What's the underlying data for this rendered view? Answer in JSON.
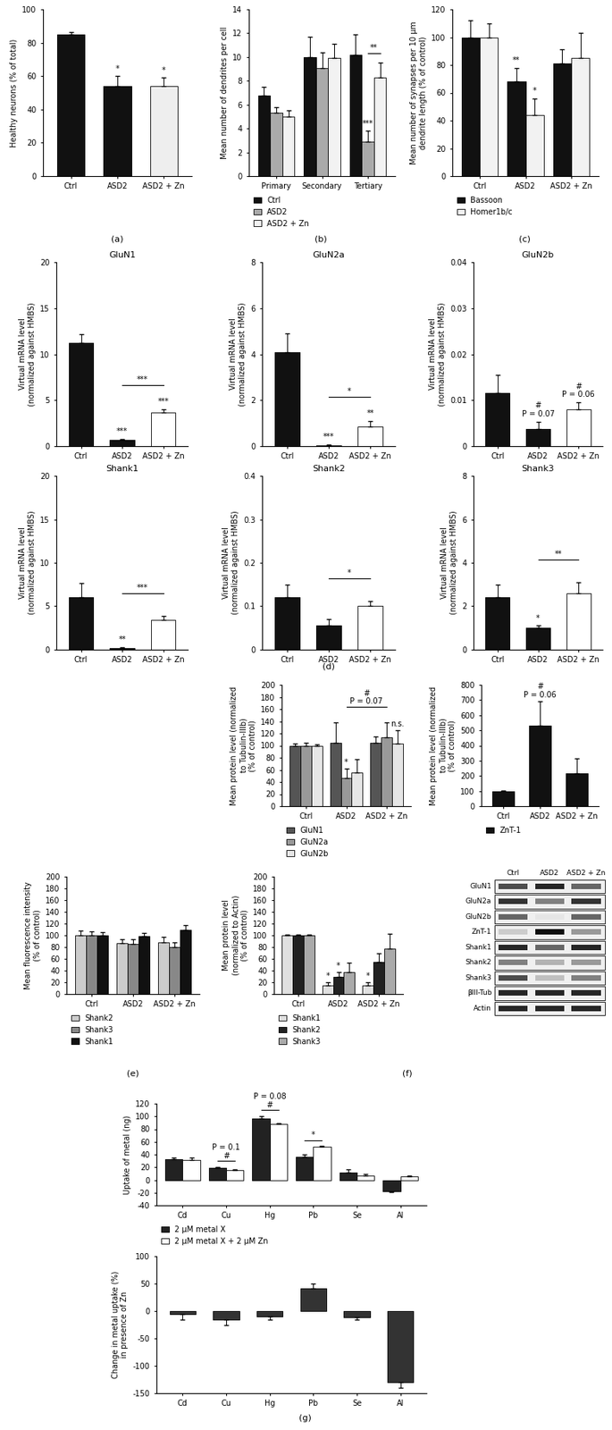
{
  "chart_data": [
    {
      "type": "bar",
      "categories": [
        "Ctrl",
        "ASD2",
        "ASD2 + Zn"
      ],
      "values": [
        85,
        54,
        54
      ],
      "errors": [
        1.5,
        6,
        5
      ],
      "colors": [
        "#111111",
        "#111111",
        "#eeeeee"
      ],
      "y_label": "Healthy neurons (% of total)",
      "ylim": [
        0,
        100
      ],
      "yticks": [
        0,
        20,
        40,
        60,
        80,
        100
      ],
      "annotations": [
        {
          "text": "*",
          "category": "ASD2"
        },
        {
          "text": "*",
          "category": "ASD2 + Zn"
        }
      ]
    },
    {
      "type": "bar",
      "categories": [
        "Primary",
        "Secondary",
        "Tertiary"
      ],
      "series": [
        {
          "name": "Ctrl",
          "color": "#111111",
          "values": [
            6.8,
            10,
            10.2
          ],
          "errors": [
            0.7,
            1.7,
            1.7
          ]
        },
        {
          "name": "ASD2",
          "color": "#aaaaaa",
          "values": [
            5.3,
            9.1,
            2.9
          ],
          "errors": [
            0.5,
            1.3,
            0.9
          ]
        },
        {
          "name": "ASD2 + Zn",
          "color": "#f2f2f2",
          "values": [
            5,
            9.9,
            8.3
          ],
          "errors": [
            0.5,
            1.2,
            1.2
          ]
        }
      ],
      "y_label": "Mean number of dendrites per cell",
      "ylim": [
        0,
        14
      ],
      "yticks": [
        0,
        2,
        4,
        6,
        8,
        10,
        12,
        14
      ],
      "legend": "below",
      "annotations": [
        {
          "text": "***",
          "category": "Tertiary",
          "series": "ASD2"
        },
        {
          "text": "**",
          "category": "Tertiary",
          "between_series": [
            "ASD2",
            "ASD2 + Zn"
          ]
        }
      ]
    },
    {
      "type": "bar",
      "categories": [
        "Ctrl",
        "ASD2",
        "ASD2 + Zn"
      ],
      "series": [
        {
          "name": "Bassoon",
          "color": "#111111",
          "values": [
            100,
            68,
            81
          ],
          "errors": [
            12,
            10,
            10
          ]
        },
        {
          "name": "Homer1b/c",
          "color": "#f2f2f2",
          "values": [
            100,
            44,
            85
          ],
          "errors": [
            10,
            12,
            18
          ]
        }
      ],
      "y_label": "Mean number of synapses per 10 μm\ndendrite length (% of control)",
      "ylim": [
        0,
        120
      ],
      "yticks": [
        0,
        20,
        40,
        60,
        80,
        100,
        120
      ],
      "legend": "below",
      "annotations": [
        {
          "text": "**",
          "category": "ASD2",
          "series": "Bassoon"
        },
        {
          "text": "*",
          "category": "ASD2",
          "series": "Homer1b/c"
        }
      ]
    },
    {
      "type": "bar",
      "title": "GluN1",
      "categories": [
        "Ctrl",
        "ASD2",
        "ASD2 + Zn"
      ],
      "values": [
        11.2,
        0.7,
        3.7
      ],
      "errors": [
        1,
        0.1,
        0.3
      ],
      "colors": [
        "#111111",
        "#111111",
        "#ffffff"
      ],
      "y_label": "Virtual mRNA level\n(normalized against HMBS)",
      "ylim": [
        0,
        20
      ],
      "yticks": [
        0,
        5,
        10,
        15,
        20
      ],
      "annotations": [
        {
          "text": "***",
          "category": "ASD2"
        },
        {
          "text": "***",
          "category": "ASD2 + Zn"
        },
        {
          "text": "***",
          "between": [
            "ASD2",
            "ASD2 + Zn"
          ]
        }
      ]
    },
    {
      "type": "bar",
      "title": "GluN2a",
      "categories": [
        "Ctrl",
        "ASD2",
        "ASD2 + Zn"
      ],
      "values": [
        4.1,
        0.05,
        0.85
      ],
      "errors": [
        0.8,
        0.02,
        0.25
      ],
      "colors": [
        "#111111",
        "#111111",
        "#ffffff"
      ],
      "y_label": "Virtual mRNA level\n(normalized against HMBS)",
      "ylim": [
        0,
        8
      ],
      "yticks": [
        0,
        2,
        4,
        6,
        8
      ],
      "annotations": [
        {
          "text": "***",
          "category": "ASD2"
        },
        {
          "text": "**",
          "category": "ASD2 + Zn"
        },
        {
          "text": "*",
          "between": [
            "ASD2",
            "ASD2 + Zn"
          ]
        }
      ]
    },
    {
      "type": "bar",
      "title": "GluN2b",
      "categories": [
        "Ctrl",
        "ASD2",
        "ASD2 + Zn"
      ],
      "values": [
        0.0115,
        0.0038,
        0.008
      ],
      "errors": [
        0.004,
        0.0015,
        0.0015
      ],
      "colors": [
        "#111111",
        "#111111",
        "#ffffff"
      ],
      "y_label": "Virtual mRNA level\n(normalized against HMBS)",
      "ylim": [
        0,
        0.04
      ],
      "yticks": [
        0,
        0.01,
        0.02,
        0.03,
        0.04
      ],
      "annotations": [
        {
          "text": "#\nP = 0.07",
          "category": "ASD2"
        },
        {
          "text": "#\nP = 0.06",
          "category": "ASD2 + Zn"
        }
      ]
    },
    {
      "type": "bar",
      "title": "Shank1",
      "categories": [
        "Ctrl",
        "ASD2",
        "ASD2 + Zn"
      ],
      "values": [
        6,
        0.2,
        3.4
      ],
      "errors": [
        1.7,
        0.1,
        0.5
      ],
      "colors": [
        "#111111",
        "#111111",
        "#ffffff"
      ],
      "y_label": "Virtual mRNA level\n(normalized against HMBS)",
      "ylim": [
        0,
        20
      ],
      "yticks": [
        0,
        5,
        10,
        15,
        20
      ],
      "annotations": [
        {
          "text": "**",
          "category": "ASD2"
        },
        {
          "text": "***",
          "between": [
            "ASD2",
            "ASD2 + Zn"
          ]
        }
      ]
    },
    {
      "type": "bar",
      "title": "Shank2",
      "categories": [
        "Ctrl",
        "ASD2",
        "ASD2 + Zn"
      ],
      "values": [
        0.12,
        0.055,
        0.1
      ],
      "errors": [
        0.03,
        0.015,
        0.012
      ],
      "colors": [
        "#111111",
        "#111111",
        "#ffffff"
      ],
      "y_label": "Virtual mRNA level\n(normalized against HMBS)",
      "ylim": [
        0,
        0.4
      ],
      "yticks": [
        0,
        0.1,
        0.2,
        0.3,
        0.4
      ],
      "annotations": [
        {
          "text": "*",
          "between": [
            "ASD2",
            "ASD2 + Zn"
          ]
        }
      ]
    },
    {
      "type": "bar",
      "title": "Shank3",
      "categories": [
        "Ctrl",
        "ASD2",
        "ASD2 + Zn"
      ],
      "values": [
        2.4,
        1.0,
        2.6
      ],
      "errors": [
        0.6,
        0.1,
        0.5
      ],
      "colors": [
        "#111111",
        "#111111",
        "#ffffff"
      ],
      "y_label": "Virtual mRNA level\n(normalized against HMBS)",
      "ylim": [
        0,
        8
      ],
      "yticks": [
        0,
        2,
        4,
        6,
        8
      ],
      "annotations": [
        {
          "text": "*",
          "category": "ASD2"
        },
        {
          "text": "**",
          "between": [
            "ASD2",
            "ASD2 + Zn"
          ]
        }
      ]
    },
    {
      "type": "bar",
      "categories": [
        "Ctrl",
        "ASD2",
        "ASD2 + Zn"
      ],
      "series": [
        {
          "name": "GluN1",
          "color": "#555555",
          "values": [
            100,
            105,
            105
          ],
          "errors": [
            3,
            33,
            10
          ]
        },
        {
          "name": "GluN2a",
          "color": "#999999",
          "values": [
            100,
            47,
            113
          ],
          "errors": [
            5,
            15,
            25
          ]
        },
        {
          "name": "GluN2b",
          "color": "#e6e6e6",
          "values": [
            100,
            55,
            103
          ],
          "errors": [
            2,
            22,
            22
          ]
        }
      ],
      "y_label": "Mean protein level (normalized\nto Tubulin-IIIb)\n(% of control)",
      "ylim": [
        0,
        200
      ],
      "yticks": [
        0,
        20,
        40,
        60,
        80,
        100,
        120,
        140,
        160,
        180,
        200
      ],
      "legend": "below",
      "annotations": [
        {
          "text": "*",
          "category": "ASD2",
          "series": "GluN2a"
        },
        {
          "text": "#\nP = 0.07",
          "between": [
            "ASD2",
            "ASD2 + Zn"
          ],
          "series": "GluN2a"
        },
        {
          "text": "n.s.",
          "category": "ASD2 + Zn",
          "series": "GluN2b"
        }
      ]
    },
    {
      "type": "bar",
      "categories": [
        "Ctrl",
        "ASD2",
        "ASD2 + Zn"
      ],
      "series": [
        {
          "name": "ZnT-1",
          "color": "#111111",
          "values": [
            100,
            530,
            215
          ],
          "errors": [
            5,
            160,
            100
          ]
        }
      ],
      "y_label": "Mean protein level (normalized\nto Tubulin-IIIb)\n(% of control)",
      "ylim": [
        0,
        800
      ],
      "yticks": [
        0,
        100,
        200,
        300,
        400,
        500,
        600,
        700,
        800
      ],
      "legend": "below",
      "annotations": [
        {
          "text": "#\nP = 0.06",
          "category": "ASD2",
          "series": "ZnT-1"
        }
      ]
    },
    {
      "type": "bar",
      "categories": [
        "Ctrl",
        "ASD2",
        "ASD2 + Zn"
      ],
      "series": [
        {
          "name": "Shank2",
          "color": "#cccccc",
          "values": [
            100,
            87,
            88
          ],
          "errors": [
            8,
            7,
            10
          ]
        },
        {
          "name": "Shank3",
          "color": "#888888",
          "values": [
            100,
            86,
            80
          ],
          "errors": [
            7,
            8,
            8
          ]
        },
        {
          "name": "Shank1",
          "color": "#111111",
          "values": [
            100,
            99,
            110
          ],
          "errors": [
            5,
            5,
            7
          ]
        }
      ],
      "y_label": "Mean fluorescence intensity\n(% of control)",
      "ylim": [
        0,
        200
      ],
      "yticks": [
        0,
        20,
        40,
        60,
        80,
        100,
        120,
        140,
        160,
        180,
        200
      ],
      "legend": "below",
      "annotations": []
    },
    {
      "type": "bar",
      "categories": [
        "Ctrl",
        "ASD2",
        "ASD2 + Zn"
      ],
      "series": [
        {
          "name": "Shank1",
          "color": "#e0e0e0",
          "values": [
            100,
            15,
            15
          ],
          "errors": [
            2,
            5,
            5
          ]
        },
        {
          "name": "Shank2",
          "color": "#222222",
          "values": [
            100,
            30,
            55
          ],
          "errors": [
            1,
            8,
            15
          ]
        },
        {
          "name": "Shank3",
          "color": "#aaaaaa",
          "values": [
            100,
            38,
            78
          ],
          "errors": [
            2,
            15,
            25
          ]
        }
      ],
      "y_label": "Mean protein level\n(normalized to Actin)\n(% of control)",
      "ylim": [
        0,
        200
      ],
      "yticks": [
        0,
        20,
        40,
        60,
        80,
        100,
        120,
        140,
        160,
        180,
        200
      ],
      "legend": "below",
      "annotations": [
        {
          "text": "*",
          "category": "ASD2",
          "series": "Shank1"
        },
        {
          "text": "*",
          "category": "ASD2",
          "series": "Shank2"
        },
        {
          "text": "*",
          "category": "ASD2 + Zn",
          "series": "Shank1"
        }
      ]
    },
    {
      "type": "bar",
      "categories": [
        "Cd",
        "Cu",
        "Hg",
        "Pb",
        "Se",
        "Al"
      ],
      "series": [
        {
          "name": "2 μM metal X",
          "color": "#222222",
          "values": [
            33,
            19,
            97,
            36,
            12,
            -18
          ],
          "errors": [
            2,
            1,
            3,
            4,
            5,
            1
          ]
        },
        {
          "name": "2 μM metal X + 2 μM Zn",
          "color": "#ffffff",
          "values": [
            32,
            16,
            88,
            52,
            7,
            5
          ],
          "errors": [
            3,
            1,
            1,
            1,
            2,
            2
          ]
        }
      ],
      "y_label": "Uptake of metal (ng)",
      "ylim": [
        -40,
        120
      ],
      "yticks": [
        -40,
        -20,
        0,
        20,
        40,
        60,
        80,
        100,
        120
      ],
      "legend": "below",
      "annotations": [
        {
          "text": "P = 0.1\n#",
          "category": "Cu",
          "between_series": [
            "2 μM metal X",
            "2 μM metal X + 2 μM Zn"
          ]
        },
        {
          "text": "P = 0.08\n#",
          "category": "Hg",
          "between_series": [
            "2 μM metal X",
            "2 μM metal X + 2 μM Zn"
          ]
        },
        {
          "text": "*",
          "category": "Pb",
          "between_series": [
            "2 μM metal X",
            "2 μM metal X + 2 μM Zn"
          ]
        }
      ]
    },
    {
      "type": "bar",
      "categories": [
        "Cd",
        "Cu",
        "Hg",
        "Pb",
        "Se",
        "Al"
      ],
      "values": [
        -5,
        -15,
        -10,
        42,
        -12,
        -130
      ],
      "errors": [
        10,
        10,
        5,
        8,
        3,
        10
      ],
      "colors": [
        "#333333",
        "#333333",
        "#333333",
        "#333333",
        "#333333",
        "#333333"
      ],
      "y_label": "Change in metal uptake (%)\nin presence of Zn",
      "ylim": [
        -150,
        100
      ],
      "yticks": [
        -150,
        -100,
        -50,
        0,
        50,
        100
      ],
      "annotations": []
    }
  ],
  "western_blot": {
    "columns": [
      "Ctrl",
      "ASD2",
      "ASD2 + Zn"
    ],
    "rows": [
      "GluN1",
      "GluN2a",
      "GluN2b",
      "ZnT-1",
      "Shank1",
      "Shank2",
      "Shank3",
      "βIII-Tub",
      "Actin"
    ]
  },
  "panel_labels": [
    "(a)",
    "(b)",
    "(c)",
    "(d)",
    "(e)",
    "(f)",
    "(g)"
  ]
}
